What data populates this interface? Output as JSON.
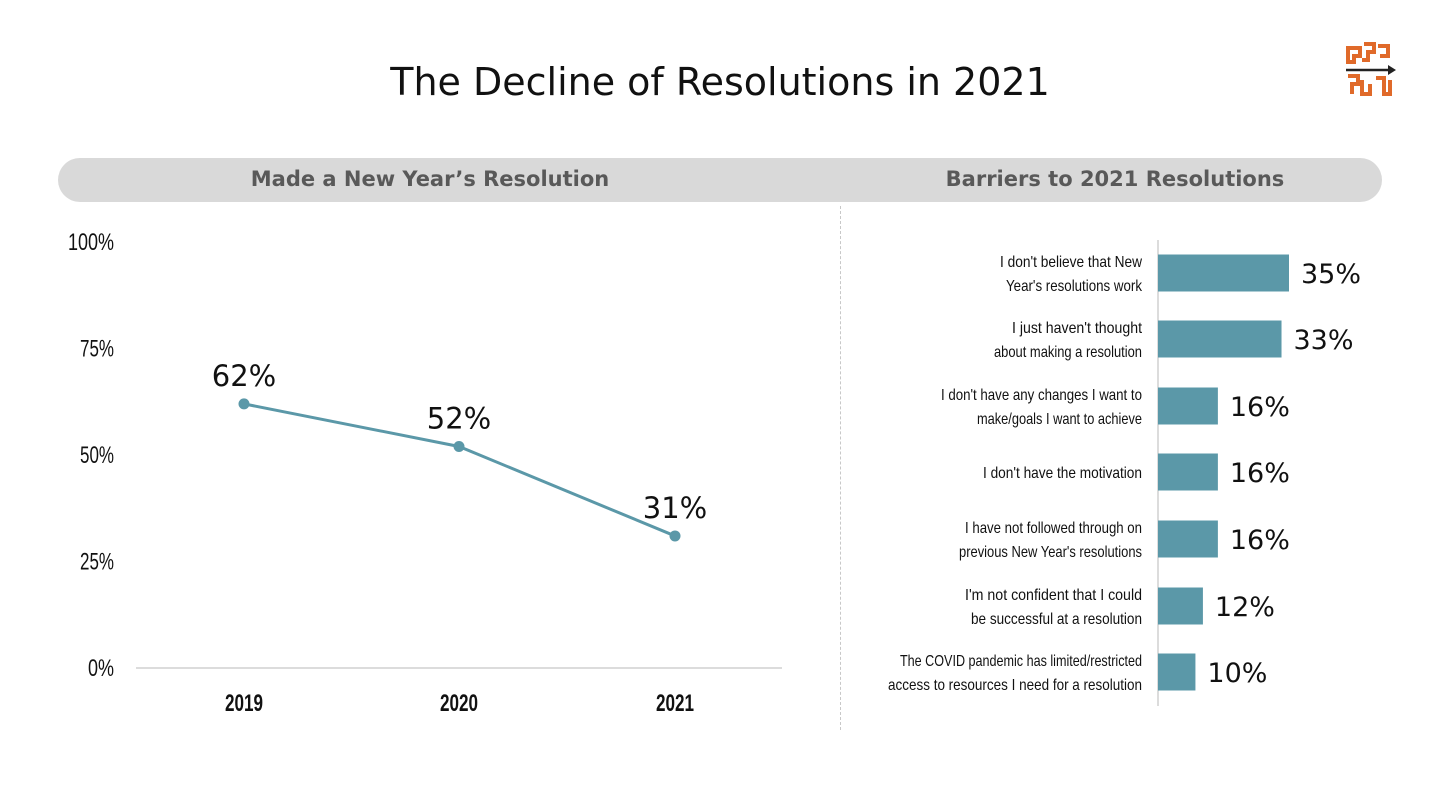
{
  "title": "The Decline of Resolutions in 2021",
  "colors": {
    "accent": "#5b98a8",
    "logo": "#e06a2a",
    "header_bg": "#d9d9d9",
    "header_text": "#595959"
  },
  "logo_icon": "maze-arrow-logo",
  "panels": {
    "left_header": "Made a New Year’s Resolution",
    "right_header": "Barriers to 2021 Resolutions"
  },
  "chart_data": [
    {
      "type": "line",
      "title": "Made a New Year’s Resolution",
      "x": [
        "2019",
        "2020",
        "2021"
      ],
      "values": [
        62,
        52,
        31
      ],
      "data_labels": [
        "62%",
        "52%",
        "31%"
      ],
      "y_ticks": [
        "0%",
        "25%",
        "50%",
        "75%",
        "100%"
      ],
      "ylim": [
        0,
        100
      ],
      "grid": false,
      "color": "#5b98a8"
    },
    {
      "type": "bar",
      "orientation": "horizontal",
      "title": "Barriers to 2021 Resolutions",
      "categories": [
        [
          "I don't believe that New",
          "Year's resolutions work"
        ],
        [
          "I just haven't thought",
          "about making a resolution"
        ],
        [
          "I don't have any changes I want to",
          "make/goals I want to achieve"
        ],
        [
          "I don't have the motivation"
        ],
        [
          "I have not followed through on",
          "previous New Year's resolutions"
        ],
        [
          "I'm not confident that I could",
          "be successful at a resolution"
        ],
        [
          "The COVID pandemic has limited/restricted",
          "access to resources I need for a resolution"
        ]
      ],
      "values": [
        35,
        33,
        16,
        16,
        16,
        12,
        10
      ],
      "data_labels": [
        "35%",
        "33%",
        "16%",
        "16%",
        "16%",
        "12%",
        "10%"
      ],
      "grid": false,
      "color": "#5b98a8"
    }
  ]
}
